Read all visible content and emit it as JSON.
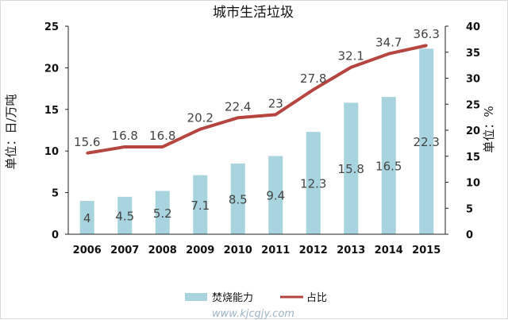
{
  "chart_data": {
    "type": "bar",
    "title": "城市生活垃圾",
    "categories": [
      "2006",
      "2007",
      "2008",
      "2009",
      "2010",
      "2011",
      "2012",
      "2013",
      "2014",
      "2015"
    ],
    "series": [
      {
        "name": "焚烧能力",
        "type": "bar",
        "axis": "left",
        "color": "#a8d4e0",
        "values": [
          4,
          4.5,
          5.2,
          7.1,
          8.5,
          9.4,
          12.3,
          15.8,
          16.5,
          22.3
        ],
        "labels": [
          "4",
          "4.5",
          "5.2",
          "7.1",
          "8.5",
          "9.4",
          "12.3",
          "15.8",
          "16.5",
          "22.3"
        ]
      },
      {
        "name": "占比",
        "type": "line",
        "axis": "right",
        "color": "#b5453e",
        "values": [
          15.6,
          16.8,
          16.8,
          20.2,
          22.4,
          23,
          27.8,
          32.1,
          34.7,
          36.3
        ],
        "labels": [
          "15.6",
          "16.8",
          "16.8",
          "20.2",
          "22.4",
          "23",
          "27.8",
          "32.1",
          "34.7",
          "36.3"
        ]
      }
    ],
    "ylabel_left": "单位：日/万吨",
    "ylabel_right": "单位：%",
    "ylim_left": [
      0,
      25
    ],
    "yticks_left": [
      "0",
      "5",
      "10",
      "15",
      "20",
      "25"
    ],
    "ylim_right": [
      0,
      40
    ],
    "yticks_right": [
      "0",
      "5",
      "10",
      "15",
      "20",
      "25",
      "30",
      "35",
      "40"
    ],
    "grid": false,
    "legend_position": "bottom",
    "watermark": "www.kjcgjy.com"
  }
}
